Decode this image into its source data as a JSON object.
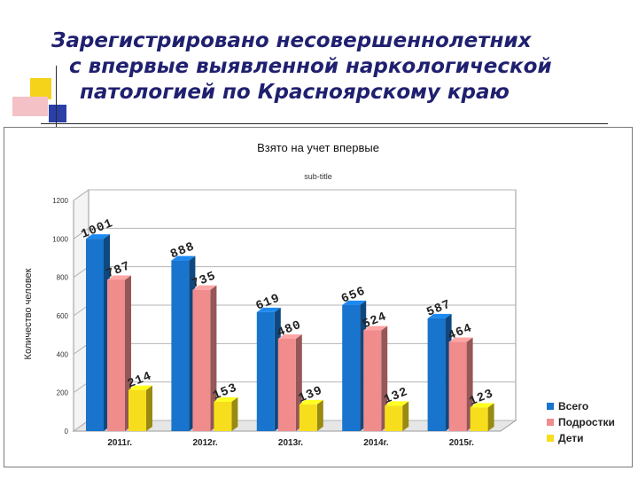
{
  "slide_title": {
    "line1": "Зарегистрировано несовершеннолетних",
    "line2": "с впервые выявленной наркологической",
    "line3": "патологией по Красноярскому краю"
  },
  "chart_data": {
    "type": "bar",
    "title": "Взято на учет впервые",
    "subtitle": "sub-title",
    "xlabel": "",
    "ylabel": "Количество человек",
    "categories": [
      "2011г.",
      "2012г.",
      "2013г.",
      "2014г.",
      "2015г."
    ],
    "series": [
      {
        "name": "Всего",
        "values": [
          1001,
          888,
          619,
          656,
          587
        ],
        "color": "#1874cd"
      },
      {
        "name": "Подростки",
        "values": [
          787,
          735,
          480,
          524,
          464
        ],
        "color": "#f08c8c"
      },
      {
        "name": "Дети",
        "values": [
          214,
          153,
          139,
          132,
          123
        ],
        "color": "#f7de1c"
      }
    ],
    "ylim": [
      0,
      1200
    ],
    "yticks": [
      0,
      200,
      400,
      600,
      800,
      1000,
      1200
    ],
    "grid": true,
    "legend_position": "right",
    "style": "3d-columns"
  }
}
